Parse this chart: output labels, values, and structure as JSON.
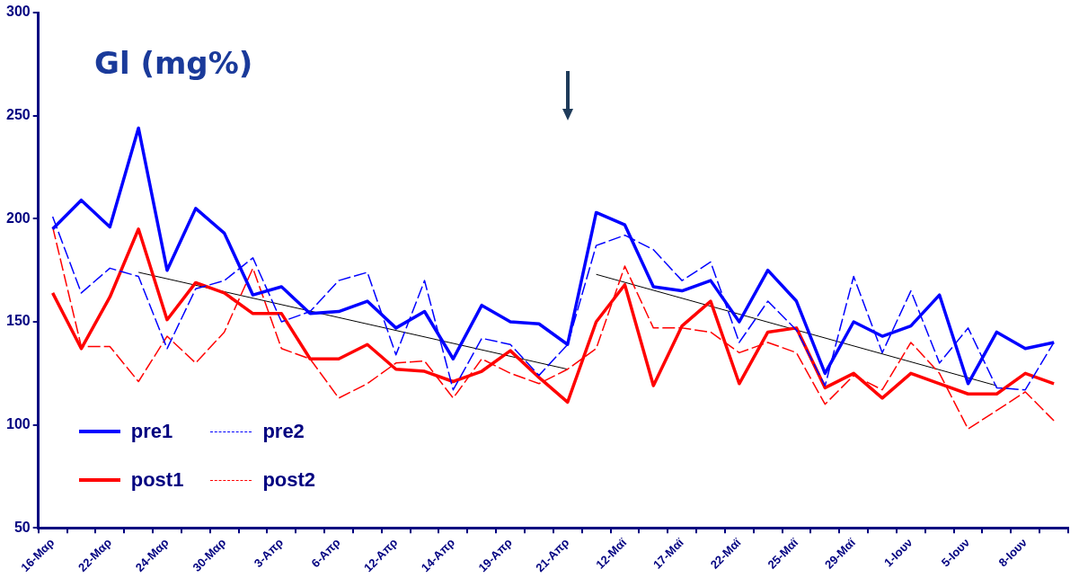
{
  "chart_data": {
    "type": "line",
    "title": "Gl (mg%)",
    "categories": [
      "16-Μαρ",
      null,
      "22-Μαρ",
      null,
      "24-Μαρ",
      null,
      "30-Μαρ",
      null,
      "3-Απρ",
      null,
      "6-Απρ",
      null,
      "12-Απρ",
      null,
      "14-Απρ",
      null,
      "19-Απρ",
      null,
      "21-Απρ",
      null,
      "12-Μαϊ",
      null,
      "17-Μαϊ",
      null,
      "22-Μαϊ",
      null,
      "25-Μαϊ",
      null,
      "29-Μαϊ",
      null,
      "1-Ιουν",
      null,
      "5-Ιουν",
      null,
      "8-Ιουν",
      null
    ],
    "series": [
      {
        "name": "pre1",
        "color": "#0000ff",
        "line_style": "solid",
        "values": [
          195,
          209,
          196,
          244,
          175,
          205,
          193,
          163,
          167,
          154,
          155,
          160,
          147,
          155,
          132,
          158,
          150,
          149,
          139,
          203,
          197,
          167,
          165,
          170,
          150,
          175,
          160,
          125,
          150,
          143,
          148,
          163,
          120,
          145,
          137,
          140
        ]
      },
      {
        "name": "pre2",
        "color": "#0000ff",
        "line_style": "dashed",
        "values": [
          201,
          164,
          176,
          172,
          137,
          166,
          170,
          181,
          150,
          155,
          170,
          174,
          134,
          170,
          117,
          142,
          139,
          124,
          139,
          187,
          192,
          185,
          170,
          179,
          140,
          160,
          146,
          119,
          172,
          135,
          165,
          130,
          147,
          118,
          117,
          140
        ]
      },
      {
        "name": "post1",
        "color": "#ff0000",
        "line_style": "solid",
        "values": [
          164,
          137,
          162,
          195,
          151,
          169,
          164,
          154,
          154,
          132,
          132,
          139,
          127,
          126,
          121,
          126,
          136,
          123,
          111,
          150,
          168,
          119,
          148,
          160,
          120,
          145,
          147,
          118,
          125,
          113,
          125,
          120,
          115,
          115,
          125,
          120
        ]
      },
      {
        "name": "post2",
        "color": "#ff0000",
        "line_style": "dashed",
        "values": [
          196,
          138,
          138,
          121,
          143,
          130,
          145,
          176,
          137,
          132,
          113,
          120,
          130,
          131,
          113,
          132,
          125,
          120,
          127,
          137,
          177,
          147,
          147,
          145,
          135,
          140,
          135,
          110,
          124,
          117,
          140,
          125,
          98,
          107,
          116,
          102
        ]
      },
      {
        "color": "#000000",
        "line_style": "solid",
        "values": [
          null,
          null,
          null,
          174,
          null,
          null,
          null,
          null,
          null,
          null,
          null,
          null,
          null,
          null,
          null,
          null,
          null,
          null,
          127,
          null,
          null,
          null,
          null,
          null,
          null,
          null,
          null,
          null,
          null,
          null,
          null,
          null,
          null,
          null,
          null,
          null
        ]
      },
      {
        "color": "#000000",
        "line_style": "solid",
        "values": [
          null,
          null,
          null,
          null,
          null,
          null,
          null,
          null,
          null,
          null,
          null,
          null,
          null,
          null,
          null,
          null,
          null,
          null,
          null,
          173,
          null,
          null,
          null,
          null,
          null,
          null,
          null,
          null,
          null,
          null,
          null,
          null,
          null,
          119,
          null,
          null
        ]
      }
    ],
    "ylim": [
      50,
      300
    ],
    "yticks": [
      50,
      100,
      150,
      200,
      250,
      300
    ],
    "grid": false,
    "legend": "bottom left",
    "marker": "none"
  }
}
